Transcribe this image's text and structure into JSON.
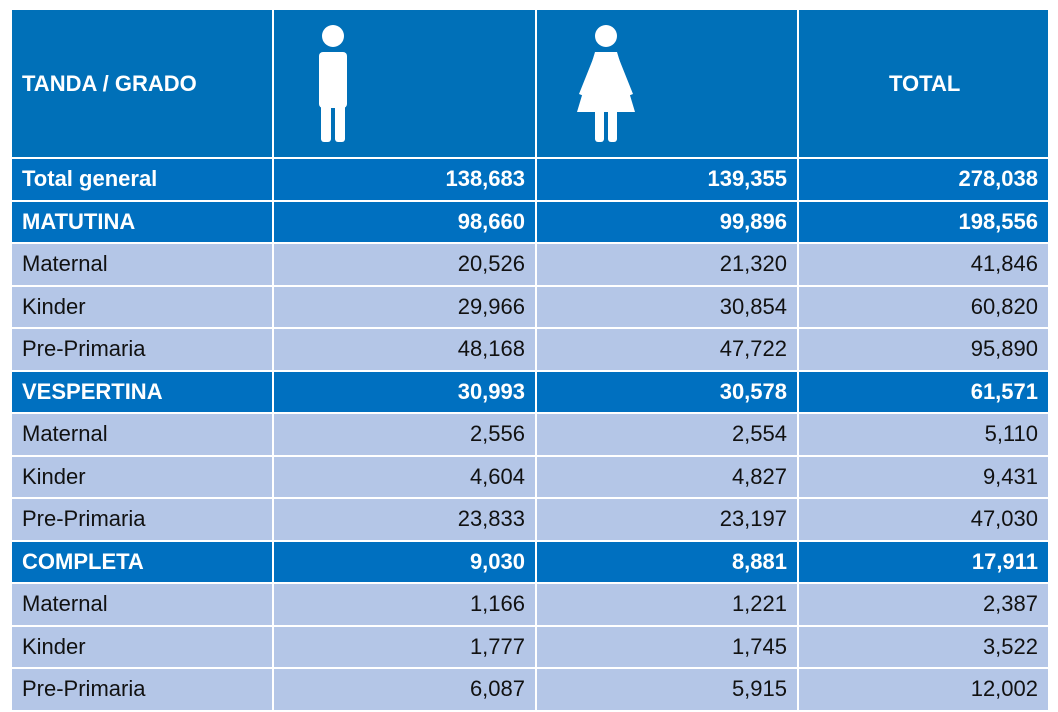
{
  "header": {
    "first": "TANDA / GRADO",
    "last": "TOTAL"
  },
  "rows": [
    {
      "label": "Total general",
      "values": [
        "138,683",
        "139,355",
        "278,038"
      ],
      "bold": true
    },
    {
      "label": "MATUTINA",
      "values": [
        "98,660",
        "99,896",
        "198,556"
      ],
      "bold": true
    },
    {
      "label": "Maternal",
      "values": [
        "20,526",
        "21,320",
        "41,846"
      ]
    },
    {
      "label": "Kinder",
      "values": [
        "29,966",
        "30,854",
        "60,820"
      ]
    },
    {
      "label": "Pre-Primaria",
      "values": [
        "48,168",
        "47,722",
        "95,890"
      ]
    },
    {
      "label": "VESPERTINA",
      "values": [
        "30,993",
        "30,578",
        "61,571"
      ],
      "bold": true
    },
    {
      "label": "Maternal",
      "values": [
        "2,556",
        "2,554",
        "5,110"
      ]
    },
    {
      "label": "Kinder",
      "values": [
        "4,604",
        "4,827",
        "9,431"
      ]
    },
    {
      "label": "Pre-Primaria",
      "values": [
        "23,833",
        "23,197",
        "47,030"
      ]
    },
    {
      "label": "COMPLETA",
      "values": [
        "9,030",
        "8,881",
        "17,911"
      ],
      "bold": true
    },
    {
      "label": "Maternal",
      "values": [
        "1,166",
        "1,221",
        "2,387"
      ]
    },
    {
      "label": "Kinder",
      "values": [
        "1,777",
        "1,745",
        "3,522"
      ]
    },
    {
      "label": "Pre-Primaria",
      "values": [
        "6,087",
        "5,915",
        "12,002"
      ]
    }
  ]
}
